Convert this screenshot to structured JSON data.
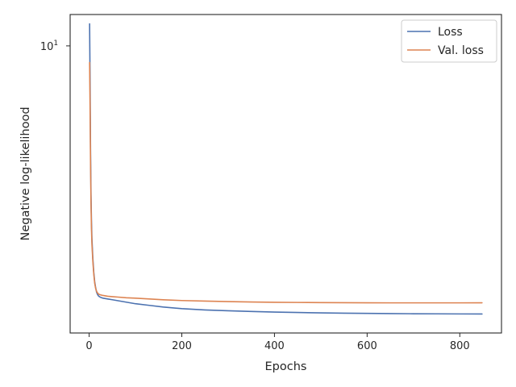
{
  "chart_data": {
    "type": "line",
    "title": "",
    "xlabel": "Epochs",
    "ylabel": "Negative log-likelihood",
    "xlim": [
      -41,
      890
    ],
    "ylim": [
      1.62,
      12.2
    ],
    "y_scale": "log",
    "grid": false,
    "legend": "top-right",
    "x_ticks": [
      0,
      200,
      400,
      600,
      800
    ],
    "y_ticks": [
      {
        "value": 10,
        "label_base": "10",
        "label_exp": "1"
      }
    ],
    "series": [
      {
        "name": "Loss",
        "color": "#4c72b0",
        "x": [
          1,
          2,
          3,
          4,
          5,
          6,
          8,
          10,
          12,
          14,
          16,
          18,
          20,
          22,
          25,
          30,
          35,
          40,
          50,
          60,
          80,
          100,
          130,
          160,
          200,
          250,
          300,
          350,
          400,
          450,
          500,
          550,
          600,
          650,
          700,
          750,
          800,
          848
        ],
        "y": [
          11.5,
          8.0,
          5.2,
          3.9,
          3.3,
          2.95,
          2.6,
          2.38,
          2.24,
          2.16,
          2.1,
          2.07,
          2.05,
          2.04,
          2.03,
          2.02,
          2.015,
          2.01,
          2.0,
          1.99,
          1.97,
          1.95,
          1.93,
          1.91,
          1.89,
          1.875,
          1.865,
          1.857,
          1.85,
          1.845,
          1.84,
          1.837,
          1.834,
          1.832,
          1.83,
          1.829,
          1.828,
          1.827
        ]
      },
      {
        "name": "Val. loss",
        "color": "#dd8452",
        "x": [
          1,
          2,
          3,
          4,
          5,
          6,
          8,
          10,
          12,
          14,
          16,
          18,
          20,
          22,
          25,
          30,
          35,
          40,
          50,
          60,
          80,
          100,
          130,
          160,
          200,
          250,
          300,
          350,
          400,
          450,
          500,
          550,
          600,
          650,
          700,
          750,
          800,
          848
        ],
        "y": [
          9.0,
          6.8,
          4.8,
          3.7,
          3.15,
          2.85,
          2.55,
          2.35,
          2.22,
          2.15,
          2.11,
          2.09,
          2.075,
          2.068,
          2.062,
          2.055,
          2.05,
          2.045,
          2.04,
          2.035,
          2.025,
          2.02,
          2.01,
          2.0,
          1.99,
          1.983,
          1.977,
          1.972,
          1.968,
          1.966,
          1.964,
          1.963,
          1.962,
          1.961,
          1.961,
          1.961,
          1.961,
          1.962
        ]
      }
    ]
  }
}
